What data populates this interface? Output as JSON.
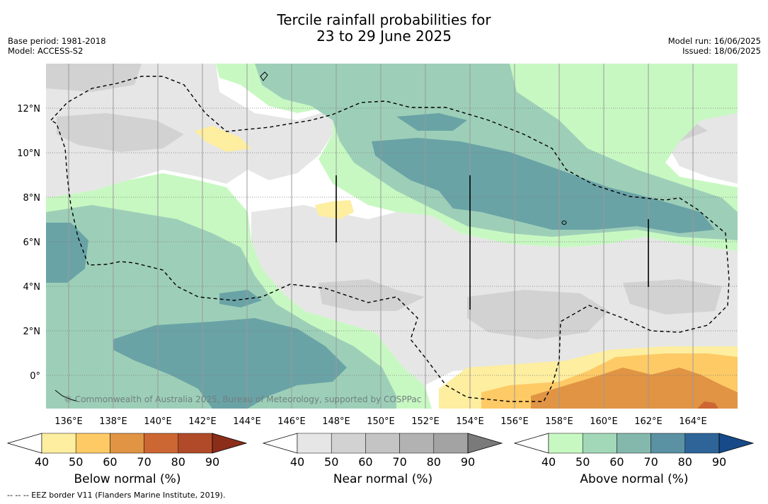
{
  "title": {
    "line1": "Tercile rainfall probabilities for",
    "line2": "23 to 29 June 2025"
  },
  "meta": {
    "base_period": "Base period: 1981-2018",
    "model": "Model: ACCESS-S2",
    "model_run": "Model run: 16/06/2025",
    "issued": "Issued: 18/06/2025"
  },
  "map": {
    "lon_labels": [
      "136°E",
      "138°E",
      "140°E",
      "142°E",
      "144°E",
      "146°E",
      "148°E",
      "150°E",
      "152°E",
      "154°E",
      "156°E",
      "158°E",
      "160°E",
      "162°E",
      "164°E"
    ],
    "lat_labels": [
      "12°N",
      "10°N",
      "8°N",
      "6°N",
      "4°N",
      "2°N",
      "0°"
    ],
    "copyright": "© Commonwealth of Australia 2025, Bureau of Meteorology, supported by COSPPac"
  },
  "colorbars": [
    {
      "label": "Below normal (%)",
      "ticks": [
        "40",
        "50",
        "60",
        "70",
        "80",
        "90"
      ],
      "colors": [
        "#ffffff",
        "#fdeea0",
        "#fdca66",
        "#e09444",
        "#cc6633",
        "#b04a28",
        "#8a2e1a"
      ]
    },
    {
      "label": "Near normal (%)",
      "ticks": [
        "40",
        "50",
        "60",
        "70",
        "80",
        "90"
      ],
      "colors": [
        "#ffffff",
        "#e6e6e6",
        "#d2d2d2",
        "#c4c4c4",
        "#b2b2b2",
        "#a3a3a3",
        "#7a7a7a"
      ]
    },
    {
      "label": "Above normal (%)",
      "ticks": [
        "40",
        "50",
        "60",
        "70",
        "80",
        "90"
      ],
      "colors": [
        "#ffffff",
        "#c8f8c2",
        "#a2d8b8",
        "#84b8ad",
        "#5a91a3",
        "#2e6498",
        "#174a88"
      ]
    }
  ],
  "colors": {
    "white": "#ffffff",
    "near50": "#e6e6e6",
    "near60": "#d2d2d2",
    "above50": "#c8f8c2",
    "above60": "#9dcfb8",
    "above70": "#6aa3a6",
    "below50": "#fdeea0",
    "below60": "#fdca66",
    "below70": "#e09444",
    "below80": "#cc6633"
  },
  "footer": "--  --  -- EEZ border V11 (Flanders Marine Institute, 2019)."
}
